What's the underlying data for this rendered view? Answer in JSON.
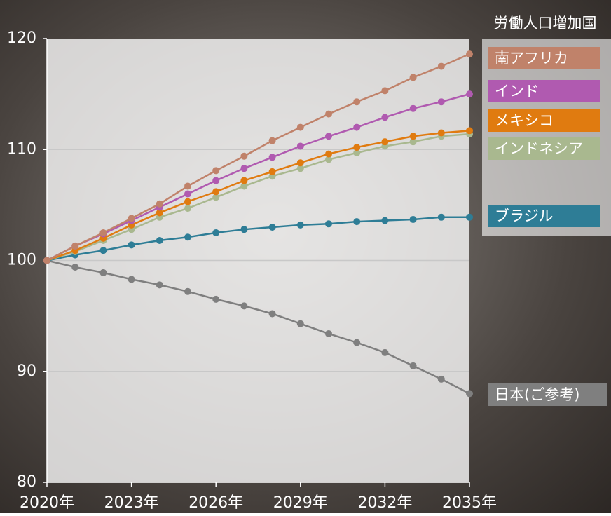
{
  "chart_data": {
    "type": "line",
    "legend_title": "労働人口増加国",
    "x": [
      2020,
      2021,
      2022,
      2023,
      2024,
      2025,
      2026,
      2027,
      2028,
      2029,
      2030,
      2031,
      2032,
      2033,
      2034,
      2035
    ],
    "xlim": [
      2020,
      2035
    ],
    "xticks": [
      {
        "value": 2020,
        "label": "2020年"
      },
      {
        "value": 2023,
        "label": "2023年"
      },
      {
        "value": 2026,
        "label": "2026年"
      },
      {
        "value": 2029,
        "label": "2029年"
      },
      {
        "value": 2032,
        "label": "2032年"
      },
      {
        "value": 2035,
        "label": "2035年"
      }
    ],
    "ylim": [
      80,
      120
    ],
    "yticks": [
      80,
      90,
      100,
      110,
      120
    ],
    "grid": true,
    "series": [
      {
        "name": "南アフリカ",
        "color": "#c0826a",
        "values": [
          100,
          101.3,
          102.5,
          103.8,
          105.1,
          106.7,
          108.1,
          109.4,
          110.8,
          112.0,
          113.2,
          114.3,
          115.3,
          116.5,
          117.5,
          118.6
        ]
      },
      {
        "name": "インド",
        "color": "#b05ab0",
        "values": [
          100,
          101.3,
          102.4,
          103.6,
          104.8,
          106.0,
          107.2,
          108.3,
          109.3,
          110.3,
          111.2,
          112.0,
          112.9,
          113.7,
          114.3,
          115.0
        ]
      },
      {
        "name": "メキシコ",
        "color": "#e07b10",
        "values": [
          100,
          100.9,
          102.0,
          103.2,
          104.3,
          105.3,
          106.2,
          107.2,
          108.0,
          108.8,
          109.6,
          110.2,
          110.7,
          111.2,
          111.5,
          111.7
        ]
      },
      {
        "name": "インドネシア",
        "color": "#a9b88f",
        "values": [
          100,
          100.8,
          101.8,
          102.8,
          103.9,
          104.7,
          105.7,
          106.7,
          107.6,
          108.3,
          109.1,
          109.7,
          110.3,
          110.7,
          111.2,
          111.4
        ]
      },
      {
        "name": "ブラジル",
        "color": "#2e7d96",
        "values": [
          100,
          100.5,
          100.9,
          101.4,
          101.8,
          102.1,
          102.5,
          102.8,
          103.0,
          103.2,
          103.3,
          103.5,
          103.6,
          103.7,
          103.9,
          103.9
        ]
      },
      {
        "name": "日本(ご参考)",
        "color": "#7f7f7f",
        "values": [
          100,
          99.4,
          98.9,
          98.3,
          97.8,
          97.2,
          96.5,
          95.9,
          95.2,
          94.3,
          93.4,
          92.6,
          91.7,
          90.5,
          89.3,
          88.0
        ]
      }
    ]
  }
}
